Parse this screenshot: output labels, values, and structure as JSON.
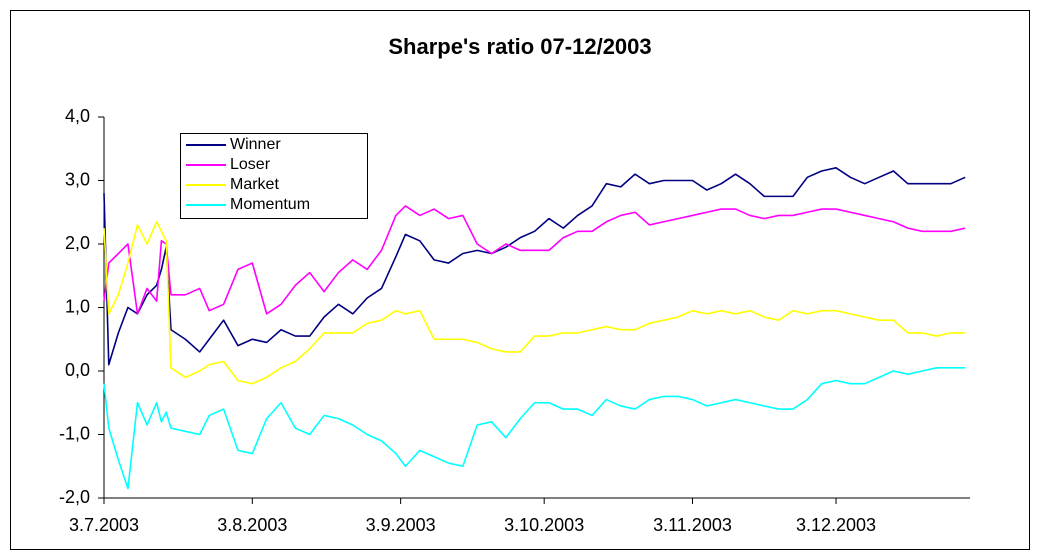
{
  "chart_data": {
    "type": "line",
    "title": "Sharpe's ratio 07-12/2003",
    "x": [
      "2003-07-03",
      "2003-07-04",
      "2003-07-06",
      "2003-07-08",
      "2003-07-10",
      "2003-07-12",
      "2003-07-14",
      "2003-07-15",
      "2003-07-16",
      "2003-07-17",
      "2003-07-20",
      "2003-07-23",
      "2003-07-25",
      "2003-07-28",
      "2003-07-31",
      "2003-08-03",
      "2003-08-06",
      "2003-08-09",
      "2003-08-12",
      "2003-08-15",
      "2003-08-18",
      "2003-08-21",
      "2003-08-24",
      "2003-08-27",
      "2003-08-30",
      "2003-09-02",
      "2003-09-04",
      "2003-09-07",
      "2003-09-10",
      "2003-09-13",
      "2003-09-16",
      "2003-09-19",
      "2003-09-22",
      "2003-09-25",
      "2003-09-28",
      "2003-10-01",
      "2003-10-04",
      "2003-10-07",
      "2003-10-10",
      "2003-10-13",
      "2003-10-16",
      "2003-10-19",
      "2003-10-22",
      "2003-10-25",
      "2003-10-28",
      "2003-10-31",
      "2003-11-03",
      "2003-11-06",
      "2003-11-09",
      "2003-11-12",
      "2003-11-15",
      "2003-11-18",
      "2003-11-21",
      "2003-11-24",
      "2003-11-27",
      "2003-11-30",
      "2003-12-03",
      "2003-12-06",
      "2003-12-09",
      "2003-12-12",
      "2003-12-15",
      "2003-12-18",
      "2003-12-21",
      "2003-12-24",
      "2003-12-27",
      "2003-12-30"
    ],
    "series": [
      {
        "name": "Winner",
        "color": "#000080",
        "values": [
          2.8,
          0.1,
          0.6,
          1.0,
          0.9,
          1.2,
          1.35,
          1.6,
          1.95,
          0.65,
          0.5,
          0.3,
          0.5,
          0.8,
          0.4,
          0.5,
          0.45,
          0.65,
          0.55,
          0.55,
          0.85,
          1.05,
          0.9,
          1.15,
          1.3,
          1.8,
          2.15,
          2.05,
          1.75,
          1.7,
          1.85,
          1.9,
          1.85,
          1.95,
          2.1,
          2.2,
          2.4,
          2.25,
          2.45,
          2.6,
          2.95,
          2.9,
          3.1,
          2.95,
          3.0,
          3.0,
          3.0,
          2.85,
          2.95,
          3.1,
          2.95,
          2.75,
          2.75,
          2.75,
          3.05,
          3.15,
          3.2,
          3.05,
          2.95,
          3.05,
          3.15,
          2.95,
          2.95,
          2.95,
          2.95,
          3.05
        ]
      },
      {
        "name": "Loser",
        "color": "#ff00ff",
        "values": [
          1.1,
          1.7,
          1.85,
          2.0,
          0.9,
          1.3,
          1.1,
          2.05,
          2.0,
          1.2,
          1.2,
          1.3,
          0.95,
          1.05,
          1.6,
          1.7,
          0.9,
          1.05,
          1.35,
          1.55,
          1.25,
          1.55,
          1.75,
          1.6,
          1.9,
          2.45,
          2.6,
          2.45,
          2.55,
          2.4,
          2.45,
          2.0,
          1.85,
          2.0,
          1.9,
          1.9,
          1.9,
          2.1,
          2.2,
          2.2,
          2.35,
          2.45,
          2.5,
          2.3,
          2.35,
          2.4,
          2.45,
          2.5,
          2.55,
          2.55,
          2.45,
          2.4,
          2.45,
          2.45,
          2.5,
          2.55,
          2.55,
          2.5,
          2.45,
          2.4,
          2.35,
          2.25,
          2.2,
          2.2,
          2.2,
          2.25
        ]
      },
      {
        "name": "Market",
        "color": "#ffff00",
        "values": [
          2.25,
          0.9,
          1.2,
          1.7,
          2.3,
          2.0,
          2.35,
          2.2,
          2.05,
          0.05,
          -0.1,
          0.0,
          0.1,
          0.15,
          -0.15,
          -0.2,
          -0.1,
          0.05,
          0.15,
          0.35,
          0.6,
          0.6,
          0.6,
          0.75,
          0.8,
          0.95,
          0.9,
          0.95,
          0.5,
          0.5,
          0.5,
          0.45,
          0.35,
          0.3,
          0.3,
          0.55,
          0.55,
          0.6,
          0.6,
          0.65,
          0.7,
          0.65,
          0.65,
          0.75,
          0.8,
          0.85,
          0.95,
          0.9,
          0.95,
          0.9,
          0.95,
          0.85,
          0.8,
          0.95,
          0.9,
          0.95,
          0.95,
          0.9,
          0.85,
          0.8,
          0.8,
          0.6,
          0.6,
          0.55,
          0.6,
          0.6
        ]
      },
      {
        "name": "Momentum",
        "color": "#00ffff",
        "values": [
          -0.2,
          -0.9,
          -1.4,
          -1.85,
          -0.5,
          -0.85,
          -0.5,
          -0.8,
          -0.65,
          -0.9,
          -0.95,
          -1.0,
          -0.7,
          -0.6,
          -1.25,
          -1.3,
          -0.75,
          -0.5,
          -0.9,
          -1.0,
          -0.7,
          -0.75,
          -0.85,
          -1.0,
          -1.1,
          -1.3,
          -1.5,
          -1.25,
          -1.35,
          -1.45,
          -1.5,
          -0.85,
          -0.8,
          -1.05,
          -0.75,
          -0.5,
          -0.5,
          -0.6,
          -0.6,
          -0.7,
          -0.45,
          -0.55,
          -0.6,
          -0.45,
          -0.4,
          -0.4,
          -0.45,
          -0.55,
          -0.5,
          -0.45,
          -0.5,
          -0.55,
          -0.6,
          -0.6,
          -0.45,
          -0.2,
          -0.15,
          -0.2,
          -0.2,
          -0.1,
          0.0,
          -0.05,
          0.0,
          0.05,
          0.05,
          0.05
        ]
      }
    ],
    "xlim": [
      "2003-07-03",
      "2003-12-31"
    ],
    "xticks": [
      {
        "value": "2003-07-03",
        "label": "3.7.2003"
      },
      {
        "value": "2003-08-03",
        "label": "3.8.2003"
      },
      {
        "value": "2003-09-03",
        "label": "3.9.2003"
      },
      {
        "value": "2003-10-03",
        "label": "3.10.2003"
      },
      {
        "value": "2003-11-03",
        "label": "3.11.2003"
      },
      {
        "value": "2003-12-03",
        "label": "3.12.2003"
      }
    ],
    "ylim": [
      -2,
      4
    ],
    "yticks": [
      {
        "value": -2,
        "label": "-2,0"
      },
      {
        "value": -1,
        "label": "-1,0"
      },
      {
        "value": 0,
        "label": "0,0"
      },
      {
        "value": 1,
        "label": "1,0"
      },
      {
        "value": 2,
        "label": "2,0"
      },
      {
        "value": 3,
        "label": "3,0"
      },
      {
        "value": 4,
        "label": "4,0"
      }
    ],
    "grid": false,
    "legend": "upper left"
  }
}
